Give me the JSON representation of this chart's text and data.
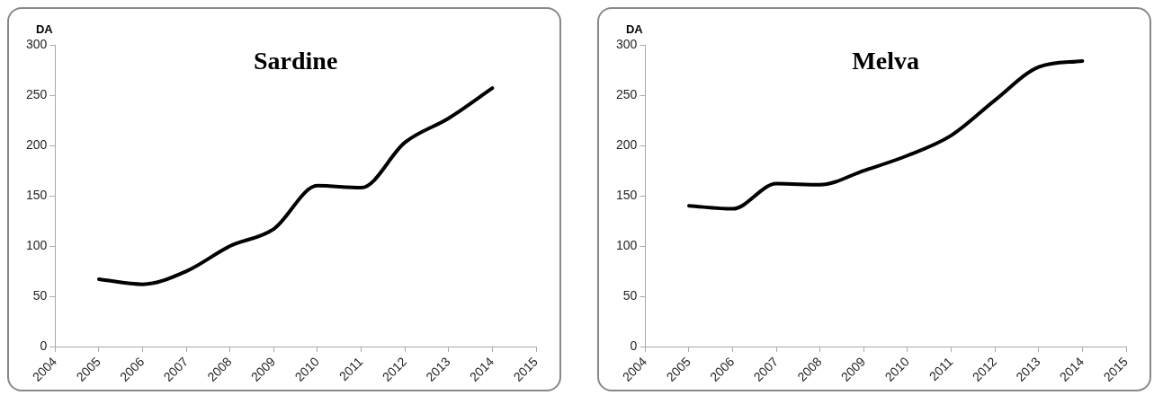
{
  "chart_data": [
    {
      "type": "line",
      "title": "Sardine",
      "ylabel": "DA",
      "x": [
        2005,
        2006,
        2007,
        2008,
        2009,
        2010,
        2011,
        2012,
        2013,
        2014
      ],
      "xlim": [
        2004,
        2015
      ],
      "xticks": [
        2004,
        2005,
        2006,
        2007,
        2008,
        2009,
        2010,
        2011,
        2012,
        2013,
        2014,
        2015
      ],
      "ylim": [
        0,
        300
      ],
      "yticks": [
        0,
        50,
        100,
        150,
        200,
        250,
        300
      ],
      "series": [
        {
          "color": "#000000",
          "values": [
            67,
            62,
            75,
            100,
            117,
            160,
            158,
            203,
            227,
            257
          ]
        }
      ],
      "marker": "none",
      "line_style": "solid",
      "legend": false
    },
    {
      "type": "line",
      "title": "Melva",
      "ylabel": "DA",
      "x": [
        2005,
        2006,
        2007,
        2008,
        2009,
        2010,
        2011,
        2012,
        2013,
        2014
      ],
      "xlim": [
        2004,
        2015
      ],
      "xticks": [
        2004,
        2005,
        2006,
        2007,
        2008,
        2009,
        2010,
        2011,
        2012,
        2013,
        2014,
        2015
      ],
      "ylim": [
        0,
        300
      ],
      "yticks": [
        0,
        50,
        100,
        150,
        200,
        250,
        300
      ],
      "series": [
        {
          "color": "#000000",
          "values": [
            140,
            137,
            162,
            161,
            175,
            190,
            210,
            245,
            278,
            284
          ]
        }
      ],
      "marker": "none",
      "line_style": "solid",
      "legend": false
    }
  ]
}
